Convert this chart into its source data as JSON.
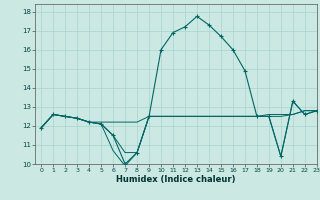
{
  "title": "",
  "xlabel": "Humidex (Indice chaleur)",
  "bg_color": "#cbe8e3",
  "grid_color": "#a8d5ce",
  "line_color": "#006666",
  "xlim": [
    -0.5,
    23
  ],
  "ylim": [
    10,
    18.4
  ],
  "xticks": [
    0,
    1,
    2,
    3,
    4,
    5,
    6,
    7,
    8,
    9,
    10,
    11,
    12,
    13,
    14,
    15,
    16,
    17,
    18,
    19,
    20,
    21,
    22,
    23
  ],
  "yticks": [
    10,
    11,
    12,
    13,
    14,
    15,
    16,
    17,
    18
  ],
  "line1_x": [
    0,
    1,
    2,
    3,
    4,
    5,
    6,
    7,
    8,
    9,
    10,
    11,
    12,
    13,
    14,
    15,
    16,
    17,
    18,
    19,
    20,
    21,
    22,
    23
  ],
  "line1_y": [
    11.9,
    12.6,
    12.5,
    12.4,
    12.2,
    12.1,
    10.7,
    9.9,
    10.6,
    12.5,
    12.5,
    12.5,
    12.5,
    12.5,
    12.5,
    12.5,
    12.5,
    12.5,
    12.5,
    12.5,
    12.5,
    12.6,
    12.8,
    12.8
  ],
  "line2_x": [
    0,
    1,
    2,
    3,
    4,
    5,
    6,
    7,
    8,
    9,
    10,
    11,
    12,
    13,
    14,
    15,
    16,
    17,
    18,
    19,
    20,
    21,
    22,
    23
  ],
  "line2_y": [
    11.9,
    12.6,
    12.5,
    12.4,
    12.2,
    12.1,
    11.5,
    10.6,
    10.6,
    12.5,
    12.5,
    12.5,
    12.5,
    12.5,
    12.5,
    12.5,
    12.5,
    12.5,
    12.5,
    12.5,
    10.4,
    13.3,
    12.6,
    12.8
  ],
  "line3_x": [
    0,
    1,
    2,
    3,
    4,
    5,
    6,
    7,
    8,
    9,
    10,
    11,
    12,
    13,
    14,
    15,
    16,
    17,
    18,
    19,
    20,
    21,
    22,
    23
  ],
  "line3_y": [
    11.9,
    12.6,
    12.5,
    12.4,
    12.2,
    12.2,
    12.2,
    12.2,
    12.2,
    12.5,
    12.5,
    12.5,
    12.5,
    12.5,
    12.5,
    12.5,
    12.5,
    12.5,
    12.5,
    12.6,
    12.6,
    12.6,
    12.8,
    12.8
  ],
  "line4_x": [
    0,
    1,
    2,
    3,
    4,
    5,
    6,
    7,
    8,
    9,
    10,
    11,
    12,
    13,
    14,
    15,
    16,
    17,
    18,
    19,
    20,
    21,
    22,
    23
  ],
  "line4_y": [
    11.9,
    12.6,
    12.5,
    12.4,
    12.2,
    12.1,
    11.5,
    10.0,
    10.6,
    12.5,
    16.0,
    16.9,
    17.2,
    17.75,
    17.3,
    16.7,
    16.0,
    14.9,
    12.5,
    12.5,
    10.4,
    13.3,
    12.6,
    12.8
  ]
}
